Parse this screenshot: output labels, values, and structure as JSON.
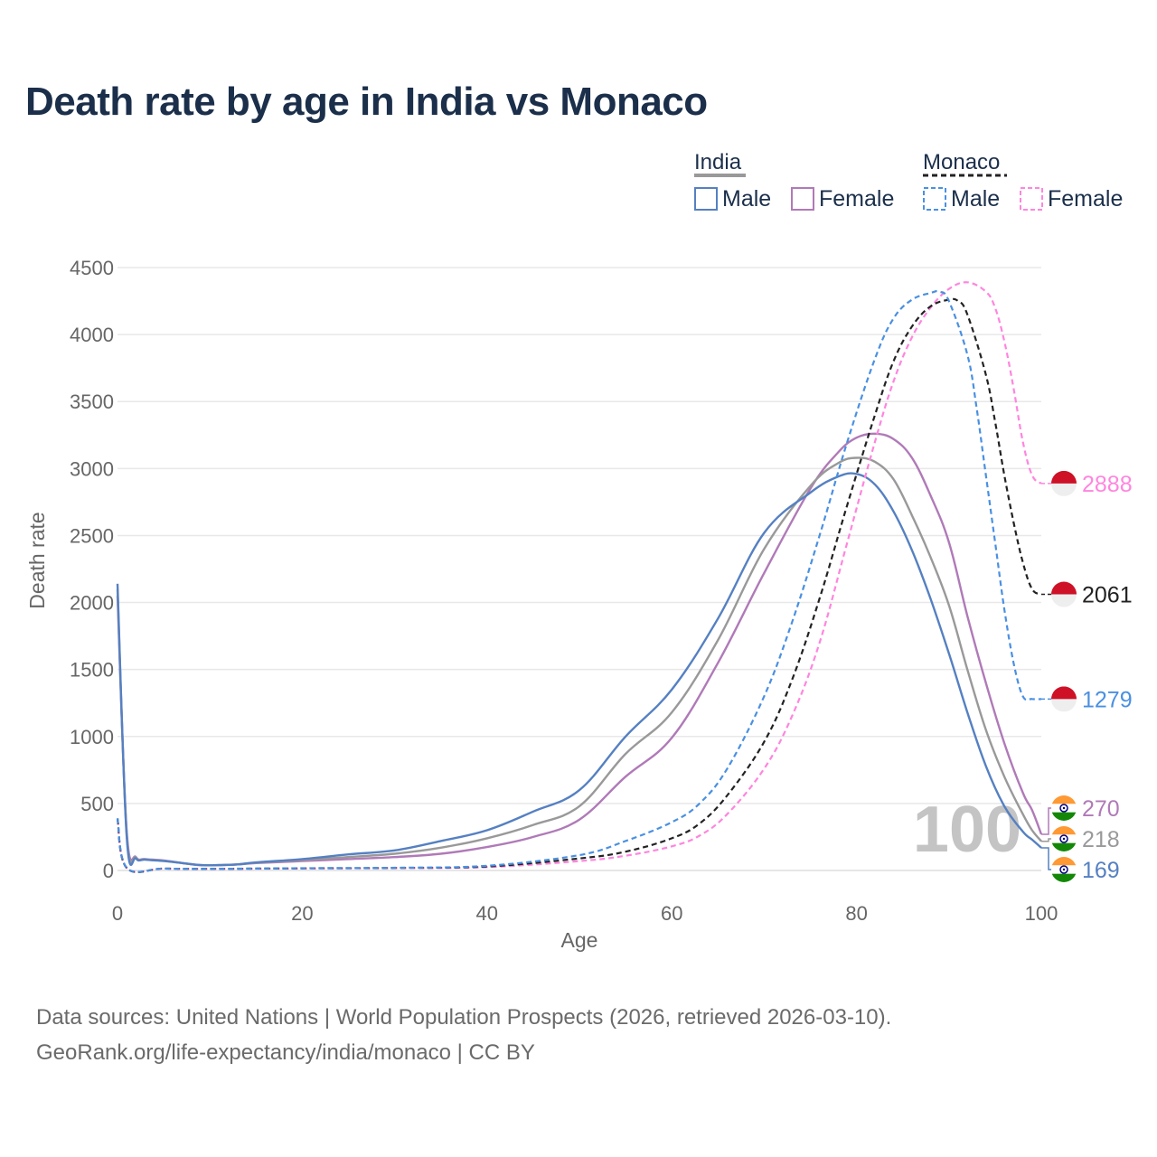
{
  "title": "Death rate by age in India vs Monaco",
  "legend": {
    "groups": [
      {
        "name": "India",
        "items": [
          "Male",
          "Female"
        ]
      },
      {
        "name": "Monaco",
        "items": [
          "Male",
          "Female"
        ]
      }
    ]
  },
  "source": {
    "line1": "Data sources: United Nations | World Population Prospects (2026, retrieved 2026-03-10).",
    "line2": "GeoRank.org/life-expectancy/india/monaco | CC BY"
  },
  "year_label": "100",
  "colors": {
    "india_male": "#5580c2",
    "india_female": "#b07ab8",
    "india_total": "#999999",
    "monaco_male": "#4a90e2",
    "monaco_female": "#ff85de",
    "monaco_total": "#222222",
    "title": "#1b2f4b",
    "flag_india_top": "#ff9933",
    "flag_india_bottom": "#138808",
    "flag_india_wheel": "#000080",
    "flag_monaco_top": "#ce1126",
    "flag_monaco_bottom": "#eeeeee"
  },
  "chart_data": {
    "type": "line",
    "title": "Death rate by age in India vs Monaco",
    "xlabel": "Age",
    "ylabel": "Death rate",
    "xlim": [
      0,
      100
    ],
    "ylim": [
      0,
      4500
    ],
    "xticks": [
      0,
      20,
      40,
      60,
      80,
      100
    ],
    "yticks": [
      0,
      500,
      1000,
      1500,
      2000,
      2500,
      3000,
      3500,
      4000,
      4500
    ],
    "grid": true,
    "series": [
      {
        "name": "India Female",
        "country": "India",
        "sex": "Female",
        "colorKey": "india_female",
        "dashed": false,
        "end_value": 270,
        "flag": "india",
        "points": [
          [
            0,
            2050
          ],
          [
            1,
            290
          ],
          [
            2,
            100
          ],
          [
            3,
            85
          ],
          [
            5,
            75
          ],
          [
            7,
            55
          ],
          [
            9,
            40
          ],
          [
            11,
            40
          ],
          [
            13,
            45
          ],
          [
            15,
            55
          ],
          [
            20,
            70
          ],
          [
            25,
            85
          ],
          [
            30,
            100
          ],
          [
            35,
            125
          ],
          [
            40,
            175
          ],
          [
            45,
            250
          ],
          [
            50,
            380
          ],
          [
            55,
            700
          ],
          [
            60,
            990
          ],
          [
            65,
            1550
          ],
          [
            70,
            2220
          ],
          [
            75,
            2850
          ],
          [
            78,
            3120
          ],
          [
            80,
            3230
          ],
          [
            82,
            3260
          ],
          [
            84,
            3220
          ],
          [
            86,
            3080
          ],
          [
            88,
            2800
          ],
          [
            90,
            2450
          ],
          [
            92,
            1900
          ],
          [
            94,
            1400
          ],
          [
            96,
            950
          ],
          [
            98,
            580
          ],
          [
            99,
            450
          ],
          [
            100,
            270
          ]
        ]
      },
      {
        "name": "India Total",
        "country": "India",
        "sex": "Total",
        "colorKey": "india_total",
        "dashed": false,
        "end_value": 218,
        "flag": "india",
        "points": [
          [
            0,
            2100
          ],
          [
            1,
            270
          ],
          [
            2,
            95
          ],
          [
            3,
            82
          ],
          [
            5,
            72
          ],
          [
            7,
            55
          ],
          [
            9,
            40
          ],
          [
            11,
            40
          ],
          [
            13,
            45
          ],
          [
            15,
            58
          ],
          [
            20,
            78
          ],
          [
            25,
            100
          ],
          [
            30,
            125
          ],
          [
            35,
            170
          ],
          [
            40,
            240
          ],
          [
            45,
            340
          ],
          [
            50,
            480
          ],
          [
            55,
            870
          ],
          [
            60,
            1180
          ],
          [
            65,
            1720
          ],
          [
            70,
            2400
          ],
          [
            75,
            2870
          ],
          [
            78,
            3040
          ],
          [
            80,
            3080
          ],
          [
            82,
            3050
          ],
          [
            84,
            2920
          ],
          [
            86,
            2650
          ],
          [
            88,
            2340
          ],
          [
            90,
            1980
          ],
          [
            92,
            1500
          ],
          [
            94,
            1050
          ],
          [
            96,
            700
          ],
          [
            98,
            420
          ],
          [
            99,
            300
          ],
          [
            100,
            218
          ]
        ]
      },
      {
        "name": "India Male",
        "country": "India",
        "sex": "Male",
        "colorKey": "india_male",
        "dashed": false,
        "end_value": 169,
        "flag": "india",
        "points": [
          [
            0,
            2140
          ],
          [
            1,
            250
          ],
          [
            2,
            90
          ],
          [
            3,
            80
          ],
          [
            5,
            70
          ],
          [
            7,
            55
          ],
          [
            9,
            40
          ],
          [
            11,
            40
          ],
          [
            13,
            45
          ],
          [
            15,
            60
          ],
          [
            20,
            85
          ],
          [
            25,
            120
          ],
          [
            30,
            150
          ],
          [
            35,
            220
          ],
          [
            40,
            300
          ],
          [
            45,
            440
          ],
          [
            50,
            600
          ],
          [
            55,
            1000
          ],
          [
            60,
            1350
          ],
          [
            65,
            1880
          ],
          [
            70,
            2520
          ],
          [
            75,
            2820
          ],
          [
            78,
            2940
          ],
          [
            80,
            2960
          ],
          [
            82,
            2880
          ],
          [
            84,
            2680
          ],
          [
            86,
            2390
          ],
          [
            88,
            2030
          ],
          [
            90,
            1620
          ],
          [
            92,
            1180
          ],
          [
            94,
            780
          ],
          [
            96,
            480
          ],
          [
            98,
            290
          ],
          [
            99,
            230
          ],
          [
            100,
            169
          ]
        ]
      },
      {
        "name": "Monaco Female",
        "country": "Monaco",
        "sex": "Female",
        "colorKey": "monaco_female",
        "dashed": true,
        "end_value": 2888,
        "flag": "monaco",
        "points": [
          [
            0,
            380
          ],
          [
            1,
            18
          ],
          [
            5,
            14
          ],
          [
            10,
            12
          ],
          [
            20,
            15
          ],
          [
            30,
            18
          ],
          [
            40,
            25
          ],
          [
            50,
            70
          ],
          [
            55,
            110
          ],
          [
            60,
            180
          ],
          [
            63,
            260
          ],
          [
            66,
            420
          ],
          [
            70,
            760
          ],
          [
            73,
            1150
          ],
          [
            76,
            1700
          ],
          [
            79,
            2450
          ],
          [
            82,
            3200
          ],
          [
            84,
            3650
          ],
          [
            86,
            3980
          ],
          [
            88,
            4200
          ],
          [
            90,
            4340
          ],
          [
            92,
            4390
          ],
          [
            94,
            4320
          ],
          [
            95,
            4200
          ],
          [
            96,
            3950
          ],
          [
            97,
            3600
          ],
          [
            98,
            3200
          ],
          [
            99,
            2950
          ],
          [
            100,
            2888
          ]
        ]
      },
      {
        "name": "Monaco Total",
        "country": "Monaco",
        "sex": "Total",
        "colorKey": "monaco_total",
        "dashed": true,
        "end_value": 2061,
        "flag": "monaco",
        "points": [
          [
            0,
            385
          ],
          [
            1,
            18
          ],
          [
            5,
            14
          ],
          [
            10,
            12
          ],
          [
            20,
            16
          ],
          [
            30,
            19
          ],
          [
            40,
            30
          ],
          [
            50,
            90
          ],
          [
            55,
            140
          ],
          [
            60,
            240
          ],
          [
            63,
            350
          ],
          [
            66,
            560
          ],
          [
            70,
            960
          ],
          [
            73,
            1420
          ],
          [
            76,
            2030
          ],
          [
            79,
            2730
          ],
          [
            82,
            3400
          ],
          [
            84,
            3800
          ],
          [
            86,
            4060
          ],
          [
            88,
            4210
          ],
          [
            90,
            4260
          ],
          [
            91,
            4250
          ],
          [
            92,
            4150
          ],
          [
            94,
            3700
          ],
          [
            95,
            3350
          ],
          [
            96,
            2950
          ],
          [
            97,
            2600
          ],
          [
            98,
            2300
          ],
          [
            99,
            2100
          ],
          [
            100,
            2061
          ]
        ]
      },
      {
        "name": "Monaco Male",
        "country": "Monaco",
        "sex": "Male",
        "colorKey": "monaco_male",
        "dashed": true,
        "end_value": 1279,
        "flag": "monaco",
        "points": [
          [
            0,
            390
          ],
          [
            1,
            20
          ],
          [
            5,
            14
          ],
          [
            10,
            12
          ],
          [
            20,
            17
          ],
          [
            30,
            20
          ],
          [
            40,
            35
          ],
          [
            50,
            115
          ],
          [
            55,
            220
          ],
          [
            60,
            360
          ],
          [
            63,
            500
          ],
          [
            66,
            760
          ],
          [
            70,
            1300
          ],
          [
            73,
            1850
          ],
          [
            76,
            2500
          ],
          [
            79,
            3200
          ],
          [
            82,
            3820
          ],
          [
            84,
            4120
          ],
          [
            86,
            4260
          ],
          [
            88,
            4310
          ],
          [
            89,
            4320
          ],
          [
            90,
            4250
          ],
          [
            92,
            3850
          ],
          [
            93,
            3450
          ],
          [
            94,
            2950
          ],
          [
            95,
            2450
          ],
          [
            96,
            1950
          ],
          [
            97,
            1550
          ],
          [
            98,
            1300
          ],
          [
            99,
            1280
          ],
          [
            100,
            1279
          ]
        ]
      }
    ]
  }
}
